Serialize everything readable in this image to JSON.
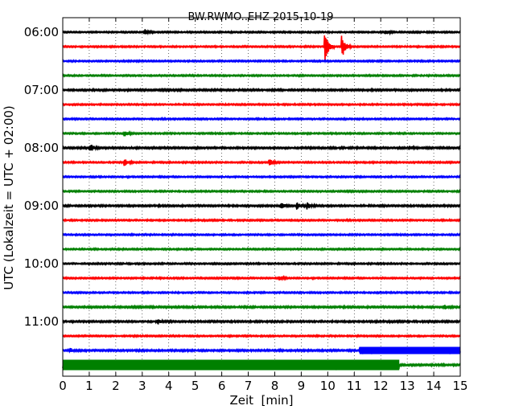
{
  "chart_data": {
    "type": "line",
    "title": "BW.RWMO..EHZ 2015-10-19",
    "xlabel": "Zeit  [min]",
    "ylabel": "UTC (Lokalzeit = UTC + 02:00)",
    "xlim": [
      0,
      15
    ],
    "x_ticks": [
      "0",
      "1",
      "2",
      "3",
      "4",
      "5",
      "6",
      "7",
      "8",
      "9",
      "10",
      "11",
      "12",
      "13",
      "14",
      "15"
    ],
    "y_ticks": [
      "06:00",
      "07:00",
      "08:00",
      "09:00",
      "10:00",
      "11:00"
    ],
    "grid": true,
    "trace_interval_minutes": 15,
    "trace_colors": [
      "#000000",
      "#ff0000",
      "#0000ff",
      "#008000"
    ],
    "traces": [
      {
        "start": "06:00",
        "color": "#000000",
        "amplitude": 0.1,
        "events": [
          {
            "t": 3.1,
            "amp": 0.3
          },
          {
            "t": 12.2,
            "amp": 0.25
          }
        ]
      },
      {
        "start": "06:15",
        "color": "#ff0000",
        "amplitude": 0.1,
        "events": [
          {
            "t": 9.9,
            "amp": 1.7
          },
          {
            "t": 10.55,
            "amp": 1.3
          }
        ]
      },
      {
        "start": "06:30",
        "color": "#0000ff",
        "amplitude": 0.1,
        "events": []
      },
      {
        "start": "06:45",
        "color": "#008000",
        "amplitude": 0.1,
        "events": []
      },
      {
        "start": "07:00",
        "color": "#000000",
        "amplitude": 0.12,
        "events": []
      },
      {
        "start": "07:15",
        "color": "#ff0000",
        "amplitude": 0.1,
        "events": []
      },
      {
        "start": "07:30",
        "color": "#0000ff",
        "amplitude": 0.1,
        "events": []
      },
      {
        "start": "07:45",
        "color": "#008000",
        "amplitude": 0.1,
        "events": [
          {
            "t": 2.35,
            "amp": 0.35
          }
        ]
      },
      {
        "start": "08:00",
        "color": "#000000",
        "amplitude": 0.12,
        "events": [
          {
            "t": 1.05,
            "amp": 0.45
          },
          {
            "t": 13.1,
            "amp": 0.2
          }
        ]
      },
      {
        "start": "08:15",
        "color": "#ff0000",
        "amplitude": 0.1,
        "events": [
          {
            "t": 2.35,
            "amp": 0.4
          },
          {
            "t": 7.8,
            "amp": 0.4
          }
        ]
      },
      {
        "start": "08:30",
        "color": "#0000ff",
        "amplitude": 0.1,
        "events": []
      },
      {
        "start": "08:45",
        "color": "#008000",
        "amplitude": 0.1,
        "events": []
      },
      {
        "start": "09:00",
        "color": "#000000",
        "amplitude": 0.12,
        "events": [
          {
            "t": 8.25,
            "amp": 0.4
          },
          {
            "t": 8.85,
            "amp": 0.4
          },
          {
            "t": 9.25,
            "amp": 0.4
          }
        ]
      },
      {
        "start": "09:15",
        "color": "#ff0000",
        "amplitude": 0.1,
        "events": []
      },
      {
        "start": "09:30",
        "color": "#0000ff",
        "amplitude": 0.1,
        "events": []
      },
      {
        "start": "09:45",
        "color": "#008000",
        "amplitude": 0.1,
        "events": []
      },
      {
        "start": "10:00",
        "color": "#000000",
        "amplitude": 0.1,
        "events": []
      },
      {
        "start": "10:15",
        "color": "#ff0000",
        "amplitude": 0.1,
        "events": [
          {
            "t": 8.2,
            "amp": 0.2
          }
        ]
      },
      {
        "start": "10:30",
        "color": "#0000ff",
        "amplitude": 0.1,
        "events": []
      },
      {
        "start": "10:45",
        "color": "#008000",
        "amplitude": 0.12,
        "events": [
          {
            "t": 14.4,
            "amp": 0.25
          }
        ]
      },
      {
        "start": "11:00",
        "color": "#000000",
        "amplitude": 0.12,
        "events": [
          {
            "t": 3.6,
            "amp": 0.25
          }
        ]
      },
      {
        "start": "11:15",
        "color": "#ff0000",
        "amplitude": 0.1,
        "events": []
      },
      {
        "start": "11:30",
        "color": "#0000ff",
        "amplitude": 0.12,
        "events": [
          {
            "t": 0.3,
            "amp": 0.25
          }
        ],
        "noise_band": {
          "from": 11.2,
          "to": 15.0,
          "amp": 0.45
        }
      },
      {
        "start": "11:45",
        "color": "#008000",
        "amplitude": 0.12,
        "events": [],
        "noise_band": {
          "from": 0.0,
          "to": 12.7,
          "amp": 0.65
        }
      }
    ]
  }
}
